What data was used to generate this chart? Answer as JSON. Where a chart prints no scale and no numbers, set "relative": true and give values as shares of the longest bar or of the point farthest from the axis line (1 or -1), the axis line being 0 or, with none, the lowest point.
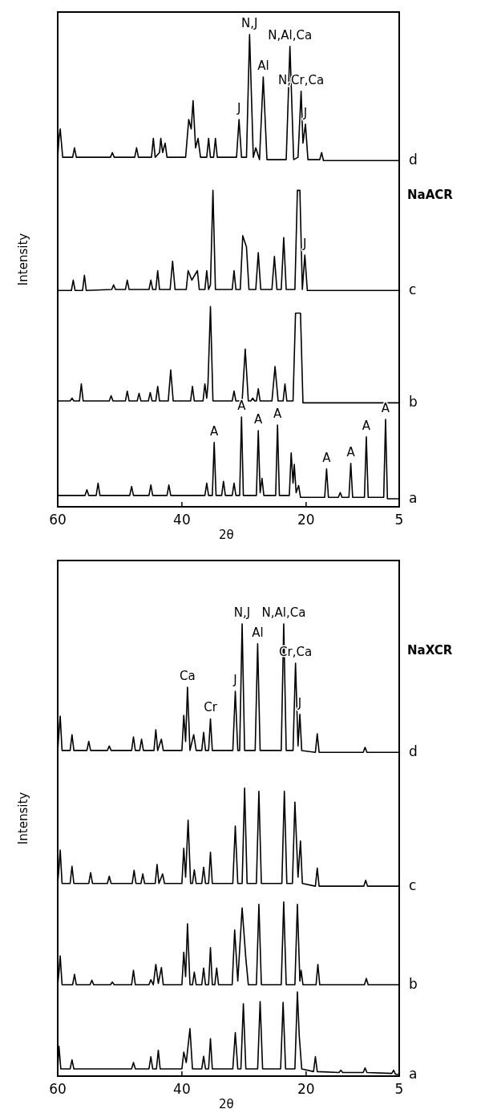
{
  "chart_data": [
    {
      "type": "line",
      "title": "NaACR",
      "xlabel": "2θ",
      "ylabel": "Intensity",
      "relative": true,
      "xlim": [
        60,
        5
      ],
      "xticks": [
        60,
        40,
        20,
        5
      ],
      "series": [
        {
          "name": "d",
          "color": "#000000",
          "x": [
            60,
            59.8,
            59.6,
            59.2,
            57.6,
            57.3,
            57.0,
            51.5,
            51.2,
            50.9,
            47.6,
            47.3,
            47.0,
            44.9,
            44.6,
            44.3,
            43.6,
            43.4,
            43.1,
            42.7,
            42.4,
            39.4,
            38.9,
            38.5,
            38.2,
            37.8,
            37.4,
            37.0,
            36.0,
            35.7,
            35.4,
            34.9,
            34.6,
            34.3,
            31.2,
            30.8,
            30.4,
            29.6,
            29.1,
            28.5,
            28.1,
            27.5,
            26.9,
            26.3,
            23.2,
            22.6,
            22.0,
            21.3,
            20.8,
            20.5,
            20.1,
            19.7,
            17.8,
            17.5,
            17.2,
            5
          ],
          "values": [
            0.74,
            0.78,
            0.8,
            0.74,
            0.74,
            0.76,
            0.74,
            0.74,
            0.75,
            0.74,
            0.74,
            0.76,
            0.74,
            0.74,
            0.78,
            0.74,
            0.75,
            0.78,
            0.75,
            0.77,
            0.74,
            0.74,
            0.82,
            0.8,
            0.86,
            0.76,
            0.78,
            0.74,
            0.74,
            0.78,
            0.74,
            0.74,
            0.78,
            0.74,
            0.74,
            0.82,
            0.74,
            0.74,
            1.0,
            0.74,
            0.76,
            0.735,
            0.91,
            0.735,
            0.735,
            0.975,
            0.735,
            0.74,
            0.88,
            0.77,
            0.81,
            0.735,
            0.735,
            0.75,
            0.733,
            0.733
          ]
        },
        {
          "name": "c",
          "color": "#000000",
          "x": [
            60,
            57.8,
            57.5,
            57.2,
            56.0,
            55.7,
            55.4,
            51.3,
            51.0,
            50.7,
            49.1,
            48.8,
            48.5,
            45.3,
            45.0,
            44.7,
            44.2,
            43.9,
            43.6,
            41.9,
            41.5,
            41.1,
            39.3,
            39.0,
            38.4,
            37.5,
            37.2,
            36.3,
            36.0,
            35.7,
            35.4,
            35.0,
            34.6,
            31.9,
            31.6,
            31.3,
            30.6,
            30.2,
            29.6,
            29.2,
            28.1,
            27.7,
            27.3,
            25.5,
            25.1,
            24.7,
            24.0,
            23.6,
            23.2,
            21.8,
            21.4,
            21.0,
            20.6,
            20.2,
            19.8,
            5
          ],
          "values": [
            0.458,
            0.458,
            0.48,
            0.458,
            0.458,
            0.49,
            0.458,
            0.46,
            0.47,
            0.46,
            0.46,
            0.48,
            0.46,
            0.46,
            0.48,
            0.46,
            0.46,
            0.5,
            0.46,
            0.46,
            0.52,
            0.46,
            0.46,
            0.5,
            0.48,
            0.5,
            0.46,
            0.46,
            0.5,
            0.46,
            0.47,
            0.67,
            0.46,
            0.46,
            0.5,
            0.46,
            0.46,
            0.574,
            0.55,
            0.46,
            0.46,
            0.538,
            0.46,
            0.46,
            0.53,
            0.46,
            0.46,
            0.57,
            0.46,
            0.46,
            0.67,
            0.67,
            0.46,
            0.533,
            0.458,
            0.458
          ]
        },
        {
          "name": "b",
          "color": "#000000",
          "x": [
            60,
            58.0,
            57.7,
            57.4,
            56.5,
            56.2,
            55.9,
            51.7,
            51.4,
            51.1,
            49.1,
            48.8,
            48.5,
            47.2,
            46.9,
            46.6,
            45.4,
            45.1,
            44.8,
            44.2,
            43.9,
            43.6,
            42.2,
            41.8,
            41.4,
            38.6,
            38.3,
            38.0,
            36.6,
            36.3,
            36.0,
            35.8,
            35.4,
            35.0,
            31.9,
            31.6,
            31.3,
            30.3,
            29.8,
            29.3,
            28.9,
            28.6,
            28.3,
            28.0,
            27.7,
            27.4,
            25.5,
            25.0,
            24.5,
            23.7,
            23.4,
            23.1,
            22.1,
            21.7,
            20.9,
            20.5,
            5
          ],
          "values": [
            0.224,
            0.224,
            0.23,
            0.224,
            0.224,
            0.26,
            0.224,
            0.224,
            0.235,
            0.224,
            0.224,
            0.245,
            0.224,
            0.224,
            0.24,
            0.224,
            0.224,
            0.242,
            0.224,
            0.224,
            0.255,
            0.224,
            0.224,
            0.29,
            0.224,
            0.224,
            0.255,
            0.224,
            0.224,
            0.26,
            0.23,
            0.26,
            0.424,
            0.224,
            0.224,
            0.245,
            0.224,
            0.224,
            0.334,
            0.224,
            0.224,
            0.23,
            0.224,
            0.224,
            0.25,
            0.224,
            0.224,
            0.297,
            0.224,
            0.224,
            0.26,
            0.224,
            0.224,
            0.41,
            0.41,
            0.22,
            0.22
          ]
        },
        {
          "name": "a",
          "color": "#000000",
          "x": [
            60,
            55.6,
            55.3,
            55.0,
            53.8,
            53.5,
            53.2,
            48.4,
            48.1,
            47.8,
            45.3,
            45.0,
            44.7,
            42.4,
            42.1,
            41.8,
            36.3,
            36.0,
            35.7,
            35.1,
            34.8,
            34.5,
            33.6,
            33.3,
            33.0,
            31.9,
            31.6,
            31.3,
            30.7,
            30.4,
            30.1,
            28.0,
            27.7,
            27.4,
            27.1,
            26.8,
            24.9,
            24.6,
            24.3,
            22.7,
            22.4,
            22.1,
            21.9,
            21.6,
            21.2,
            20.9,
            17.0,
            16.7,
            16.4,
            14.8,
            14.5,
            14.2,
            13.1,
            12.8,
            12.5,
            10.6,
            10.3,
            10.0,
            7.5,
            7.2,
            6.9,
            5
          ],
          "values": [
            0.024,
            0.024,
            0.036,
            0.024,
            0.024,
            0.05,
            0.024,
            0.024,
            0.043,
            0.024,
            0.024,
            0.046,
            0.024,
            0.024,
            0.046,
            0.024,
            0.024,
            0.05,
            0.024,
            0.024,
            0.136,
            0.024,
            0.024,
            0.054,
            0.024,
            0.024,
            0.05,
            0.024,
            0.024,
            0.19,
            0.024,
            0.024,
            0.161,
            0.03,
            0.06,
            0.024,
            0.024,
            0.173,
            0.024,
            0.024,
            0.114,
            0.05,
            0.09,
            0.03,
            0.045,
            0.02,
            0.02,
            0.08,
            0.02,
            0.02,
            0.03,
            0.02,
            0.02,
            0.092,
            0.02,
            0.02,
            0.148,
            0.02,
            0.02,
            0.185,
            0.017,
            0.017
          ]
        }
      ],
      "annotations": [
        {
          "text": "N,J",
          "x": 29.1,
          "y": 1.0
        },
        {
          "text": "Al",
          "x": 26.9,
          "y": 0.91
        },
        {
          "text": "N,Al,Ca",
          "x": 22.6,
          "y": 0.975
        },
        {
          "text": "N,Cr,Ca",
          "x": 20.8,
          "y": 0.88
        },
        {
          "text": "J",
          "x": 30.8,
          "y": 0.82
        },
        {
          "text": "J",
          "x": 20.1,
          "y": 0.81
        },
        {
          "text": "J",
          "x": 20.2,
          "y": 0.533
        },
        {
          "text": "A",
          "x": 34.8,
          "y": 0.136
        },
        {
          "text": "A",
          "x": 30.4,
          "y": 0.19
        },
        {
          "text": "A",
          "x": 27.7,
          "y": 0.161
        },
        {
          "text": "A",
          "x": 24.6,
          "y": 0.173
        },
        {
          "text": "A",
          "x": 16.7,
          "y": 0.08
        },
        {
          "text": "A",
          "x": 12.8,
          "y": 0.092
        },
        {
          "text": "A",
          "x": 10.3,
          "y": 0.148
        },
        {
          "text": "A",
          "x": 7.2,
          "y": 0.185
        }
      ]
    },
    {
      "type": "line",
      "title": "NaXCR",
      "xlabel": "2θ",
      "ylabel": "Intensity",
      "relative": true,
      "xlim": [
        60,
        5
      ],
      "xticks": [
        60,
        40,
        20,
        5
      ],
      "series": [
        {
          "name": "d",
          "color": "#000000",
          "x": [
            60,
            59.8,
            59.6,
            59.3,
            58.0,
            57.7,
            57.4,
            55.3,
            55.0,
            54.7,
            52.0,
            51.7,
            51.4,
            48.1,
            47.8,
            47.5,
            46.8,
            46.5,
            46.2,
            44.5,
            44.2,
            43.9,
            43.3,
            43.0,
            40.0,
            39.7,
            39.4,
            39.1,
            38.7,
            38.1,
            37.7,
            36.8,
            36.5,
            36.2,
            35.7,
            35.4,
            35.1,
            31.8,
            31.4,
            31.0,
            30.7,
            30.3,
            29.9,
            28.2,
            27.8,
            27.4,
            24.0,
            23.6,
            23.2,
            22.1,
            21.7,
            21.3,
            21.0,
            20.7,
            18.5,
            18.2,
            17.9,
            10.8,
            10.5,
            10.2,
            5
          ],
          "values": [
            0.72,
            0.76,
            0.796,
            0.72,
            0.72,
            0.755,
            0.72,
            0.72,
            0.74,
            0.72,
            0.72,
            0.73,
            0.72,
            0.72,
            0.75,
            0.72,
            0.72,
            0.745,
            0.72,
            0.72,
            0.766,
            0.72,
            0.745,
            0.72,
            0.72,
            0.798,
            0.74,
            0.86,
            0.72,
            0.755,
            0.72,
            0.72,
            0.76,
            0.72,
            0.72,
            0.79,
            0.72,
            0.72,
            0.851,
            0.72,
            0.72,
            1.0,
            0.72,
            0.72,
            0.956,
            0.72,
            0.72,
            1.0,
            0.72,
            0.72,
            0.913,
            0.73,
            0.8,
            0.72,
            0.716,
            0.757,
            0.716,
            0.716,
            0.727,
            0.716,
            0.716
          ]
        },
        {
          "name": "c",
          "color": "#000000",
          "x": [
            60,
            59.8,
            59.6,
            59.3,
            58.0,
            57.7,
            57.4,
            55.0,
            54.7,
            54.4,
            52.0,
            51.7,
            51.4,
            48.0,
            47.7,
            47.4,
            46.6,
            46.3,
            46.0,
            44.3,
            44.0,
            43.7,
            43.1,
            42.8,
            40.0,
            39.7,
            39.4,
            39.0,
            38.6,
            38.3,
            38.0,
            37.7,
            36.8,
            36.5,
            36.2,
            35.7,
            35.4,
            35.1,
            31.8,
            31.4,
            31.0,
            30.3,
            29.9,
            29.5,
            28.0,
            27.6,
            27.2,
            23.9,
            23.5,
            23.1,
            22.2,
            21.8,
            21.3,
            20.9,
            20.6,
            18.5,
            18.2,
            17.9,
            10.7,
            10.4,
            10.1,
            5
          ],
          "values": [
            0.426,
            0.46,
            0.5,
            0.426,
            0.426,
            0.464,
            0.426,
            0.426,
            0.45,
            0.426,
            0.426,
            0.442,
            0.426,
            0.426,
            0.455,
            0.426,
            0.426,
            0.447,
            0.426,
            0.426,
            0.468,
            0.426,
            0.447,
            0.426,
            0.426,
            0.504,
            0.44,
            0.566,
            0.426,
            0.426,
            0.456,
            0.426,
            0.426,
            0.462,
            0.426,
            0.426,
            0.495,
            0.426,
            0.426,
            0.553,
            0.426,
            0.426,
            0.637,
            0.426,
            0.426,
            0.63,
            0.426,
            0.426,
            0.63,
            0.426,
            0.426,
            0.606,
            0.44,
            0.52,
            0.426,
            0.42,
            0.46,
            0.42,
            0.42,
            0.433,
            0.42,
            0.42
          ]
        },
        {
          "name": "b",
          "color": "#000000",
          "x": [
            60,
            59.8,
            59.6,
            59.3,
            57.6,
            57.3,
            57.0,
            54.8,
            54.5,
            54.2,
            51.5,
            51.2,
            50.9,
            48.1,
            47.8,
            47.5,
            45.3,
            45.0,
            44.6,
            44.2,
            43.8,
            43.3,
            43.0,
            40.0,
            39.7,
            39.4,
            39.1,
            38.7,
            38.3,
            38.0,
            37.7,
            36.8,
            36.5,
            36.2,
            35.7,
            35.4,
            35.1,
            34.7,
            34.4,
            34.1,
            31.9,
            31.5,
            31.0,
            30.3,
            29.7,
            29.3,
            28.0,
            27.6,
            27.2,
            24.0,
            23.6,
            23.2,
            21.8,
            21.4,
            21.0,
            20.8,
            20.5,
            18.4,
            18.1,
            17.8,
            10.6,
            10.3,
            10.0,
            5
          ],
          "values": [
            0.202,
            0.23,
            0.266,
            0.202,
            0.202,
            0.225,
            0.202,
            0.202,
            0.212,
            0.202,
            0.202,
            0.208,
            0.202,
            0.202,
            0.234,
            0.202,
            0.202,
            0.213,
            0.202,
            0.247,
            0.205,
            0.24,
            0.202,
            0.202,
            0.274,
            0.22,
            0.337,
            0.202,
            0.202,
            0.23,
            0.202,
            0.202,
            0.239,
            0.202,
            0.202,
            0.284,
            0.202,
            0.202,
            0.239,
            0.202,
            0.202,
            0.323,
            0.21,
            0.372,
            0.26,
            0.202,
            0.202,
            0.38,
            0.202,
            0.202,
            0.385,
            0.202,
            0.202,
            0.38,
            0.21,
            0.234,
            0.202,
            0.202,
            0.247,
            0.202,
            0.202,
            0.216,
            0.202,
            0.202
          ]
        },
        {
          "name": "a",
          "color": "#000000",
          "x": [
            60,
            59.8,
            59.5,
            58.0,
            57.7,
            57.4,
            48.1,
            47.8,
            47.5,
            45.3,
            45.0,
            44.7,
            44.1,
            43.8,
            43.5,
            40.0,
            39.7,
            39.3,
            38.7,
            38.3,
            36.8,
            36.5,
            36.2,
            35.7,
            35.4,
            35.1,
            31.8,
            31.4,
            31.0,
            30.5,
            30.1,
            29.7,
            27.8,
            27.4,
            27.0,
            24.1,
            23.7,
            23.3,
            21.8,
            21.4,
            21.1,
            20.7,
            18.8,
            18.5,
            18.2,
            14.7,
            14.4,
            14.1,
            10.8,
            10.5,
            10.2,
            6.2,
            5.9,
            5.6,
            5
          ],
          "values": [
            0.016,
            0.066,
            0.016,
            0.016,
            0.036,
            0.016,
            0.016,
            0.03,
            0.016,
            0.016,
            0.043,
            0.016,
            0.016,
            0.057,
            0.016,
            0.016,
            0.053,
            0.03,
            0.105,
            0.016,
            0.016,
            0.044,
            0.016,
            0.016,
            0.083,
            0.016,
            0.016,
            0.096,
            0.016,
            0.016,
            0.16,
            0.016,
            0.016,
            0.165,
            0.016,
            0.016,
            0.163,
            0.016,
            0.016,
            0.186,
            0.089,
            0.016,
            0.01,
            0.043,
            0.01,
            0.008,
            0.013,
            0.008,
            0.008,
            0.018,
            0.008,
            0.006,
            0.013,
            0.004,
            0.004
          ]
        }
      ],
      "annotations": [
        {
          "text": "N,J",
          "x": 30.3,
          "y": 1.0
        },
        {
          "text": "Al",
          "x": 27.8,
          "y": 0.956
        },
        {
          "text": "N,Al,Ca",
          "x": 23.6,
          "y": 1.0
        },
        {
          "text": "Cr,Ca",
          "x": 21.7,
          "y": 0.913
        },
        {
          "text": "J",
          "x": 31.4,
          "y": 0.851
        },
        {
          "text": "J",
          "x": 21.0,
          "y": 0.8
        },
        {
          "text": "Ca",
          "x": 39.1,
          "y": 0.86
        },
        {
          "text": "Cr",
          "x": 35.4,
          "y": 0.79
        }
      ]
    }
  ]
}
